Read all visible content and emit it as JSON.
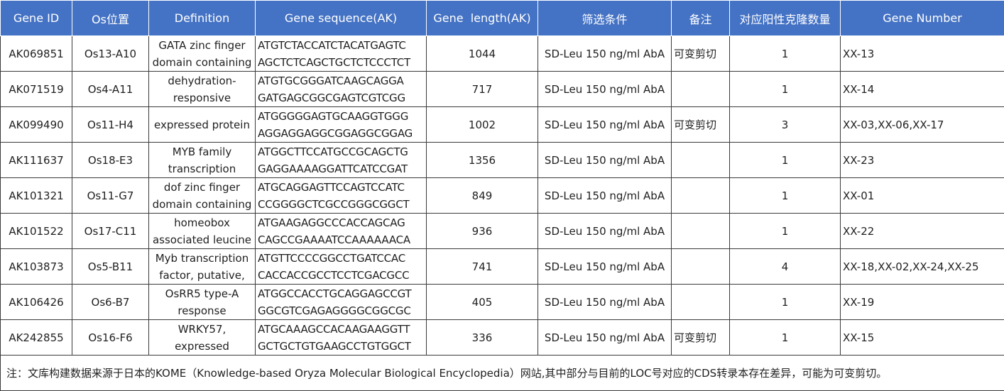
{
  "table": {
    "headers": {
      "gene_id": "Gene ID",
      "os_position": "Os位置",
      "definition": "Definition",
      "gene_sequence": "Gene sequence(AK)",
      "gene_length": "Gene  length(AK)",
      "screening": "筛选条件",
      "remark": "备注",
      "positive_clones": "对应阳性克隆数量",
      "gene_number": "Gene Number"
    },
    "rows": [
      {
        "gene_id": "AK069851",
        "os_position": "Os13-A10",
        "definition_l1": "GATA zinc finger",
        "definition_l2": "domain containing",
        "seq_l1": "ATGTCTACCATCTACATGAGTC",
        "seq_l2": "AGCTCTCAGCTGCTCTCCCTCT",
        "length": "1044",
        "screening": "SD-Leu 150 ng/ml AbA",
        "remark": "可变剪切",
        "positive_clones": "1",
        "gene_number": "XX-13"
      },
      {
        "gene_id": "AK071519",
        "os_position": "Os4-A11",
        "definition_l1": "dehydration-",
        "definition_l2": "responsive",
        "seq_l1": "ATGTGCGGGATCAAGCAGGA",
        "seq_l2": "GATGAGCGGCGAGTCGTCGG",
        "length": "717",
        "screening": "SD-Leu 150 ng/ml AbA",
        "remark": "",
        "positive_clones": "1",
        "gene_number": "XX-14"
      },
      {
        "gene_id": "AK099490",
        "os_position": "Os11-H4",
        "definition_l1": "expressed protein",
        "definition_l2": "",
        "seq_l1": "ATGGGGGAGTGCAAGGTGGG",
        "seq_l2": "AGGAGGAGGCGGAGGCGGAG",
        "length": "1002",
        "screening": "SD-Leu 150 ng/ml AbA",
        "remark": "可变剪切",
        "positive_clones": "3",
        "gene_number": "XX-03,XX-06,XX-17"
      },
      {
        "gene_id": "AK111637",
        "os_position": "Os18-E3",
        "definition_l1": "MYB family",
        "definition_l2": "transcription",
        "seq_l1": "ATGGCTTCCATGCCGCAGCTG",
        "seq_l2": "GAGGAAAAGGATTCATCCGAT",
        "length": "1356",
        "screening": "SD-Leu 150 ng/ml AbA",
        "remark": "",
        "positive_clones": "1",
        "gene_number": "XX-23"
      },
      {
        "gene_id": "AK101321",
        "os_position": "Os11-G7",
        "definition_l1": "dof zinc finger",
        "definition_l2": "domain containing",
        "seq_l1": "ATGCAGGAGTTCCAGTCCATC",
        "seq_l2": "CCGGGGCTCGCCGGGCGGCT",
        "length": "849",
        "screening": "SD-Leu 150 ng/ml AbA",
        "remark": "",
        "positive_clones": "1",
        "gene_number": "XX-01"
      },
      {
        "gene_id": "AK101522",
        "os_position": "Os17-C11",
        "definition_l1": "homeobox",
        "definition_l2": "associated leucine",
        "seq_l1": "ATGAAGAGGCCCACCAGCAG",
        "seq_l2": "CAGCCGAAAATCCAAAAAACA",
        "length": "936",
        "screening": "SD-Leu 150 ng/ml AbA",
        "remark": "",
        "positive_clones": "1",
        "gene_number": "XX-22"
      },
      {
        "gene_id": "AK103873",
        "os_position": "Os5-B11",
        "definition_l1": "Myb transcription",
        "definition_l2": "factor, putative,",
        "seq_l1": "ATGTTCCCCGGCCTGATCCAC",
        "seq_l2": "CACCACCGCCTCCTCGACGCC",
        "length": "741",
        "screening": "SD-Leu 150 ng/ml AbA",
        "remark": "",
        "positive_clones": "4",
        "gene_number": "XX-18,XX-02,XX-24,XX-25"
      },
      {
        "gene_id": "AK106426",
        "os_position": "Os6-B7",
        "definition_l1": "OsRR5  type-A",
        "definition_l2": "response",
        "seq_l1": "ATGGCCACCTGCAGGAGCCGT",
        "seq_l2": "GGCGTCGAGAGGGGCGGCGC",
        "length": "405",
        "screening": "SD-Leu 150 ng/ml AbA",
        "remark": "",
        "positive_clones": "1",
        "gene_number": "XX-19"
      },
      {
        "gene_id": "AK242855",
        "os_position": "Os16-F6",
        "definition_l1": "WRKY57,",
        "definition_l2": "expressed",
        "seq_l1": "ATGCAAAGCCACAAGAAGGTT",
        "seq_l2": "GCTGCTGTGAAGCCTGTGGCT",
        "length": "336",
        "screening": "SD-Leu 150 ng/ml AbA",
        "remark": "可变剪切",
        "positive_clones": "1",
        "gene_number": "XX-15"
      }
    ],
    "note": "注：文库构建数据来源于日本的KOME（Knowledge-based Oryza Molecular Biological Encyclopedia）网站,其中部分与目前的LOC号对应的CDS转录本存在差异，可能为可变剪切。"
  },
  "colors": {
    "header_bg": "#4472c4",
    "header_text": "#ffffff",
    "border": "#3a3a3a"
  }
}
